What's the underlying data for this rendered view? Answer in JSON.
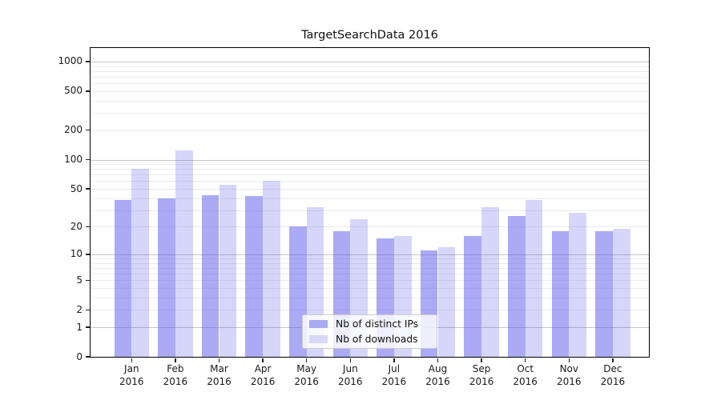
{
  "chart_data": {
    "type": "bar",
    "title": "TargetSearchData 2016",
    "categories": [
      "Jan",
      "Feb",
      "Mar",
      "Apr",
      "May",
      "Jun",
      "Jul",
      "Aug",
      "Sep",
      "Oct",
      "Nov",
      "Dec"
    ],
    "category_year_label": "2016",
    "series": [
      {
        "name": "Nb of distinct IPs",
        "fill": "rgba(85,85,235,0.5)",
        "legend_swatch": "#aaaaf0",
        "values": [
          38,
          40,
          43,
          42,
          20,
          18,
          15,
          11,
          16,
          26,
          18,
          18
        ]
      },
      {
        "name": "Nb of downloads",
        "fill": "rgba(85,85,235,0.24)",
        "legend_swatch": "#d8d8f8",
        "values": [
          80,
          125,
          55,
          60,
          32,
          24,
          16,
          12,
          32,
          38,
          28,
          19
        ]
      }
    ],
    "y_axis": {
      "scale": "log-like (log10 of 1+value), 0 at baseline",
      "tick_labels": [
        "1000",
        "500",
        "200",
        "100",
        "50",
        "20",
        "10",
        "5",
        "2",
        "1",
        "0"
      ],
      "tick_values": [
        1000,
        500,
        200,
        100,
        50,
        20,
        10,
        5,
        2,
        1,
        0
      ],
      "major_grid_values": [
        1,
        10,
        100,
        1000
      ],
      "ylim": [
        0,
        1330
      ],
      "grid": "on"
    },
    "legend": {
      "position": "lower-center",
      "entries": [
        "Nb of distinct IPs",
        "Nb of downloads"
      ]
    },
    "colors": {
      "bar_dark": "rgba(85,85,235,0.5)",
      "bar_light": "rgba(85,85,235,0.24)",
      "grid_major": "#c6c6c6",
      "grid_minor": "#ececec",
      "spine": "#000000",
      "text": "#1a1a1a"
    }
  }
}
